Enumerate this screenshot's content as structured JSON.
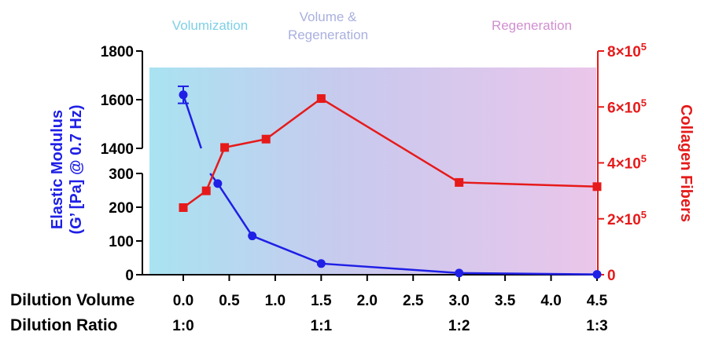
{
  "colors": {
    "left_axis": "#1f1fe6",
    "right_axis": "#e61a1a",
    "gradient_start": "#a9e3f1",
    "gradient_mid": "#c9c9ee",
    "gradient_end": "#eac6ea",
    "phase_volumization": "#7fd0e6",
    "phase_volume_regen": "#a9b0df",
    "phase_regeneration": "#d08fd0"
  },
  "phases": {
    "volumization": "Volumization",
    "volume_regen_line1": "Volume &",
    "volume_regen_line2": "Regeneration",
    "regeneration": "Regeneration"
  },
  "chart_data": {
    "type": "line",
    "x_axis": {
      "label": "Dilution Volume",
      "range": [
        0.0,
        4.5
      ],
      "ticks": [
        "0.0",
        "0.5",
        "1.0",
        "1.5",
        "2.0",
        "2.5",
        "3.0",
        "3.5",
        "4.0",
        "4.5"
      ]
    },
    "x_axis_secondary": {
      "label": "Dilution Ratio",
      "ticks": [
        {
          "x": 0.0,
          "label": "1:0"
        },
        {
          "x": 1.5,
          "label": "1:1"
        },
        {
          "x": 3.0,
          "label": "1:2"
        },
        {
          "x": 4.5,
          "label": "1:3"
        }
      ]
    },
    "y_left": {
      "label_line1": "Elastic Modulus",
      "label_line2": "(G’ [Pa] @ 0.7 Hz)",
      "broken": true,
      "lower_range": [
        0,
        300
      ],
      "upper_range": [
        1400,
        1800
      ],
      "lower_ticks": [
        "0",
        "100",
        "200",
        "300"
      ],
      "upper_ticks": [
        "1400",
        "1600",
        "1800"
      ]
    },
    "y_right": {
      "label": "Collagen Fibers",
      "range": [
        0,
        800000
      ],
      "ticks": [
        "0",
        "2×10",
        "4×10",
        "6×10",
        "8×10"
      ],
      "tick_exponent": "5"
    },
    "series": [
      {
        "axis": "left",
        "color": "#1f1fe6",
        "marker": "circle",
        "points": [
          {
            "x": 0.0,
            "y": 1620,
            "err": 35
          },
          {
            "x": 0.375,
            "y": 270
          },
          {
            "x": 0.75,
            "y": 115
          },
          {
            "x": 1.5,
            "y": 33
          },
          {
            "x": 3.0,
            "y": 5
          },
          {
            "x": 4.5,
            "y": 1
          }
        ]
      },
      {
        "axis": "right",
        "color": "#e61a1a",
        "marker": "square",
        "points": [
          {
            "x": 0.0,
            "y": 240000
          },
          {
            "x": 0.25,
            "y": 300000
          },
          {
            "x": 0.45,
            "y": 455000
          },
          {
            "x": 0.9,
            "y": 485000
          },
          {
            "x": 1.5,
            "y": 630000
          },
          {
            "x": 3.0,
            "y": 330000
          },
          {
            "x": 4.5,
            "y": 315000
          }
        ]
      }
    ]
  }
}
